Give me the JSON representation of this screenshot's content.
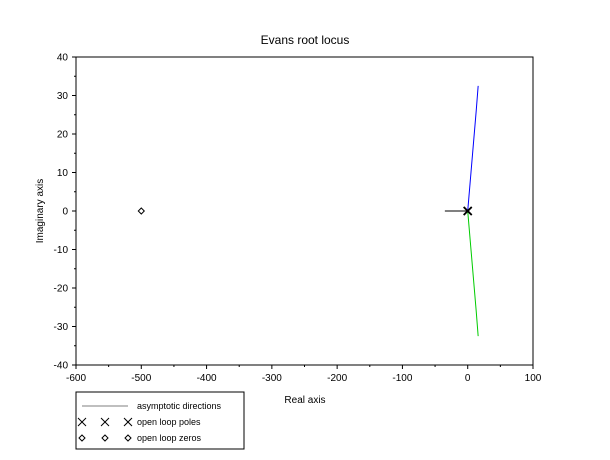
{
  "chart_data": {
    "type": "line",
    "title": "Evans root locus",
    "xlabel": "Real axis",
    "ylabel": "Imaginary axis",
    "xlim": [
      -600,
      100
    ],
    "ylim": [
      -40,
      40
    ],
    "x_ticks": [
      -600,
      -500,
      -400,
      -300,
      -200,
      -100,
      0,
      100
    ],
    "y_ticks": [
      -40,
      -30,
      -20,
      -10,
      0,
      10,
      20,
      30,
      40
    ],
    "grid": false,
    "legend": {
      "placement": "bottom-left",
      "entries": [
        {
          "label": "asymptotic directions",
          "marker": "line",
          "color": "#000000"
        },
        {
          "label": "open loop poles",
          "marker": "x",
          "color": "#000000"
        },
        {
          "label": "open loop zeros",
          "marker": "diamond",
          "color": "#000000"
        }
      ]
    },
    "series": [
      {
        "color": "#0000ff",
        "points": [
          [
            0,
            0
          ],
          [
            2,
            4
          ],
          [
            5,
            10
          ],
          [
            9,
            18
          ],
          [
            13,
            26
          ],
          [
            16,
            32.5
          ]
        ]
      },
      {
        "color": "#00cc00",
        "points": [
          [
            0,
            0
          ],
          [
            2,
            -4
          ],
          [
            5,
            -10
          ],
          [
            9,
            -18
          ],
          [
            13,
            -26
          ],
          [
            16,
            -32.5
          ]
        ]
      },
      {
        "color": "#000000",
        "points": [
          [
            -35,
            0
          ],
          [
            0,
            0
          ]
        ]
      }
    ],
    "open_loop_poles": [
      [
        0,
        0
      ],
      [
        0,
        0
      ]
    ],
    "open_loop_zeros": [
      [
        -500,
        0
      ]
    ]
  }
}
